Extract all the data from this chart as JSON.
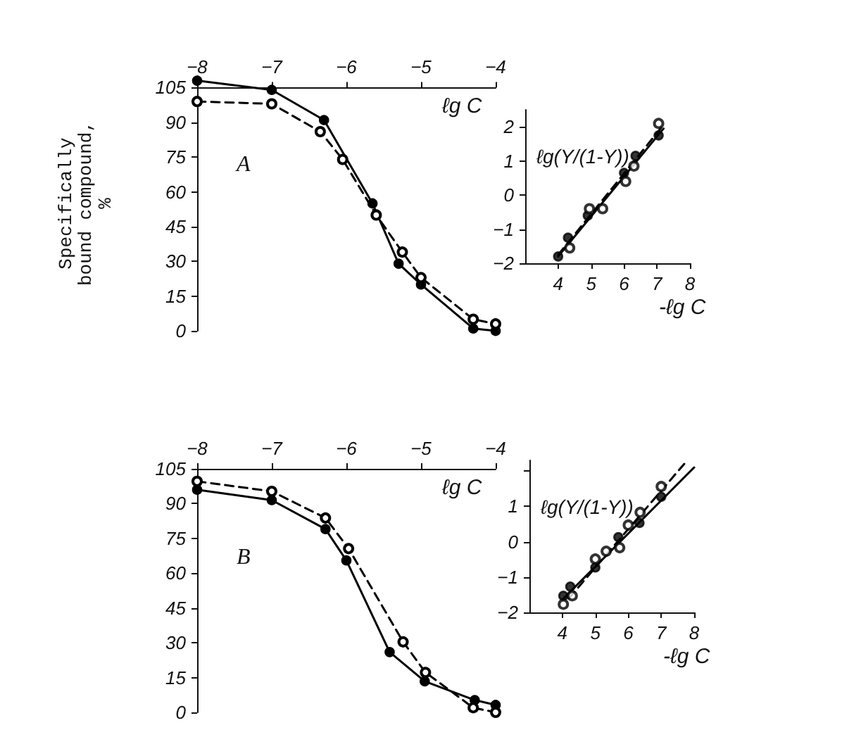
{
  "chart_data": [
    {
      "type": "line",
      "xlabel": "ℓg C",
      "ylabel": "Specifically bound compound, %",
      "annotations": [
        "A"
      ],
      "xlim": [
        -8,
        -4
      ],
      "xticks": [
        -8,
        -7,
        -6,
        -5,
        -4
      ],
      "ylim": [
        0,
        110
      ],
      "yticks": [
        0,
        15,
        30,
        45,
        60,
        75,
        90,
        105
      ],
      "grid": false,
      "marker": "circle",
      "series": [
        {
          "color": "#000000",
          "line_style": "solid",
          "x": [
            -8,
            -7,
            -6.3,
            -5.65,
            -5.3,
            -5.0,
            -4.3,
            -4.0
          ],
          "values": [
            108,
            104,
            91,
            55,
            29,
            20,
            1,
            0
          ]
        },
        {
          "color": "#000000",
          "line_style": "dashed",
          "x": [
            -8,
            -7,
            -6.35,
            -6.05,
            -5.6,
            -5.25,
            -5.0,
            -4.3,
            -4.0
          ],
          "values": [
            99,
            98,
            86,
            74,
            50,
            34,
            23,
            5,
            3
          ]
        }
      ]
    },
    {
      "type": "scatter",
      "xlabel": "-ℓg C",
      "ylabel": "ℓg(Y/(1-Y))",
      "xlim": [
        3,
        8
      ],
      "xticks": [
        4,
        5,
        6,
        7,
        8
      ],
      "ylim": [
        -2,
        2.5
      ],
      "yticks": [
        -2,
        -1,
        0,
        1,
        2
      ],
      "grid": false,
      "marker": "circle",
      "series": [
        {
          "color": "#000000",
          "line_style": "solid",
          "x": [
            4.0,
            4.3,
            4.9,
            6.0,
            6.35,
            7.05
          ],
          "values": [
            -1.8,
            -1.25,
            -0.6,
            0.65,
            1.15,
            1.75
          ]
        },
        {
          "color": "#000000",
          "line_style": "dashed",
          "x": [
            4.35,
            4.95,
            5.35,
            6.05,
            6.3,
            7.05
          ],
          "values": [
            -1.55,
            -0.4,
            -0.4,
            0.4,
            0.85,
            2.1
          ]
        },
        {
          "type": "line",
          "marker": "none",
          "color": "#000000",
          "line_style": "solid",
          "x": [
            4.0,
            7.2
          ],
          "values": [
            -1.8,
            1.95
          ]
        },
        {
          "type": "line",
          "marker": "none",
          "color": "#000000",
          "line_style": "dashed",
          "x": [
            4.0,
            7.15
          ],
          "values": [
            -1.75,
            2.0
          ]
        }
      ]
    },
    {
      "type": "line",
      "xlabel": "ℓg C",
      "annotations": [
        "B"
      ],
      "xlim": [
        -8,
        -4
      ],
      "xticks": [
        -8,
        -7,
        -6,
        -5,
        -4
      ],
      "ylim": [
        0,
        105
      ],
      "yticks": [
        0,
        15,
        30,
        45,
        60,
        75,
        90,
        105
      ],
      "grid": false,
      "marker": "circle",
      "series": [
        {
          "color": "#000000",
          "line_style": "solid",
          "x": [
            -8,
            -7,
            -6.28,
            -6.0,
            -5.42,
            -4.95,
            -4.28,
            -4.0
          ],
          "values": [
            96,
            91.5,
            79,
            65.5,
            26,
            13.4,
            5.3,
            3.2
          ]
        },
        {
          "color": "#000000",
          "line_style": "dashed",
          "x": [
            -8,
            -7,
            -6.28,
            -5.97,
            -5.24,
            -4.94,
            -4.3,
            -4.0
          ],
          "values": [
            99.6,
            95.3,
            83.8,
            70.6,
            30.4,
            17.2,
            2,
            0
          ]
        }
      ]
    },
    {
      "type": "scatter",
      "xlabel": "-ℓg C",
      "ylabel": "ℓg(Y/(1-Y))",
      "xlim": [
        3,
        8
      ],
      "xticks": [
        4,
        5,
        6,
        7,
        8
      ],
      "ylim": [
        -2,
        2.3
      ],
      "yticks": [
        -2,
        -1,
        0,
        1,
        {
          "value": 2,
          "label": null
        }
      ],
      "grid": false,
      "marker": "circle",
      "series": [
        {
          "color": "#000000",
          "line_style": "solid",
          "x": [
            4.03,
            4.24,
            5.0,
            5.7,
            6.34,
            7.0
          ],
          "values": [
            -1.53,
            -1.27,
            -0.73,
            0.13,
            0.53,
            1.27
          ]
        },
        {
          "color": "#000000",
          "line_style": "dashed",
          "x": [
            4.03,
            4.3,
            5.0,
            5.33,
            5.74,
            6.0,
            6.36,
            7.0
          ],
          "values": [
            -1.77,
            -1.53,
            -0.49,
            -0.27,
            -0.17,
            0.47,
            0.83,
            1.56
          ]
        },
        {
          "type": "line",
          "marker": "none",
          "color": "#000000",
          "line_style": "solid",
          "x": [
            4.0,
            8.0
          ],
          "values": [
            -1.64,
            2.1
          ]
        },
        {
          "type": "line",
          "marker": "none",
          "color": "#000000",
          "line_style": "dashed",
          "x": [
            4.2,
            7.7
          ],
          "values": [
            -1.6,
            2.2
          ]
        }
      ]
    }
  ]
}
